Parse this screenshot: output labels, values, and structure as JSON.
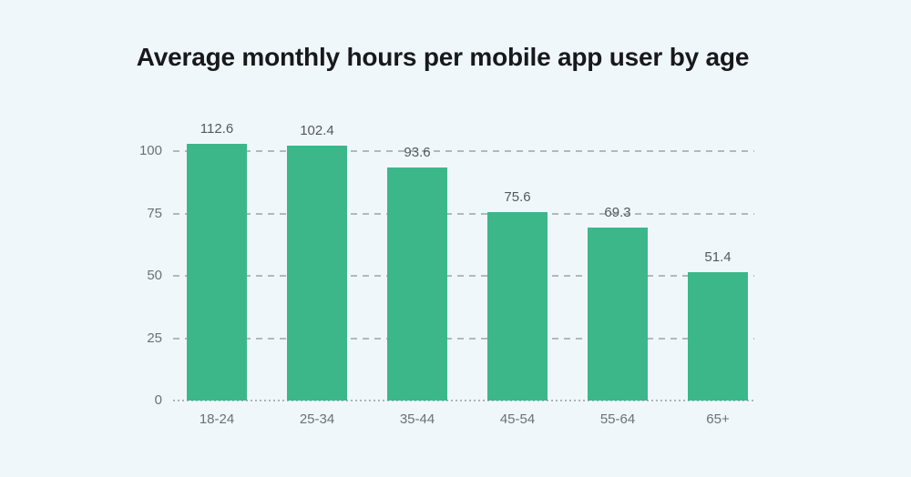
{
  "theme": {
    "background": "#F0F7FB",
    "bar": "#3CB78A",
    "title": "#17191C",
    "axis_label": "#6B7176",
    "value_label": "#54585C",
    "gridline": "#B2B8BD",
    "baseline": "#AEB4B9"
  },
  "chart_data": {
    "type": "bar",
    "title": "Average monthly hours per mobile app user by age",
    "categories": [
      "18-24",
      "25-34",
      "35-44",
      "45-54",
      "55-64",
      "65+"
    ],
    "values": [
      112.6,
      102.4,
      93.6,
      75.6,
      69.3,
      51.4
    ],
    "xlabel": "",
    "ylabel": "",
    "yticks": [
      0,
      25,
      50,
      75,
      100
    ],
    "ylim": [
      0,
      103
    ],
    "grid": "horizontal-dashed",
    "legend": "none"
  }
}
